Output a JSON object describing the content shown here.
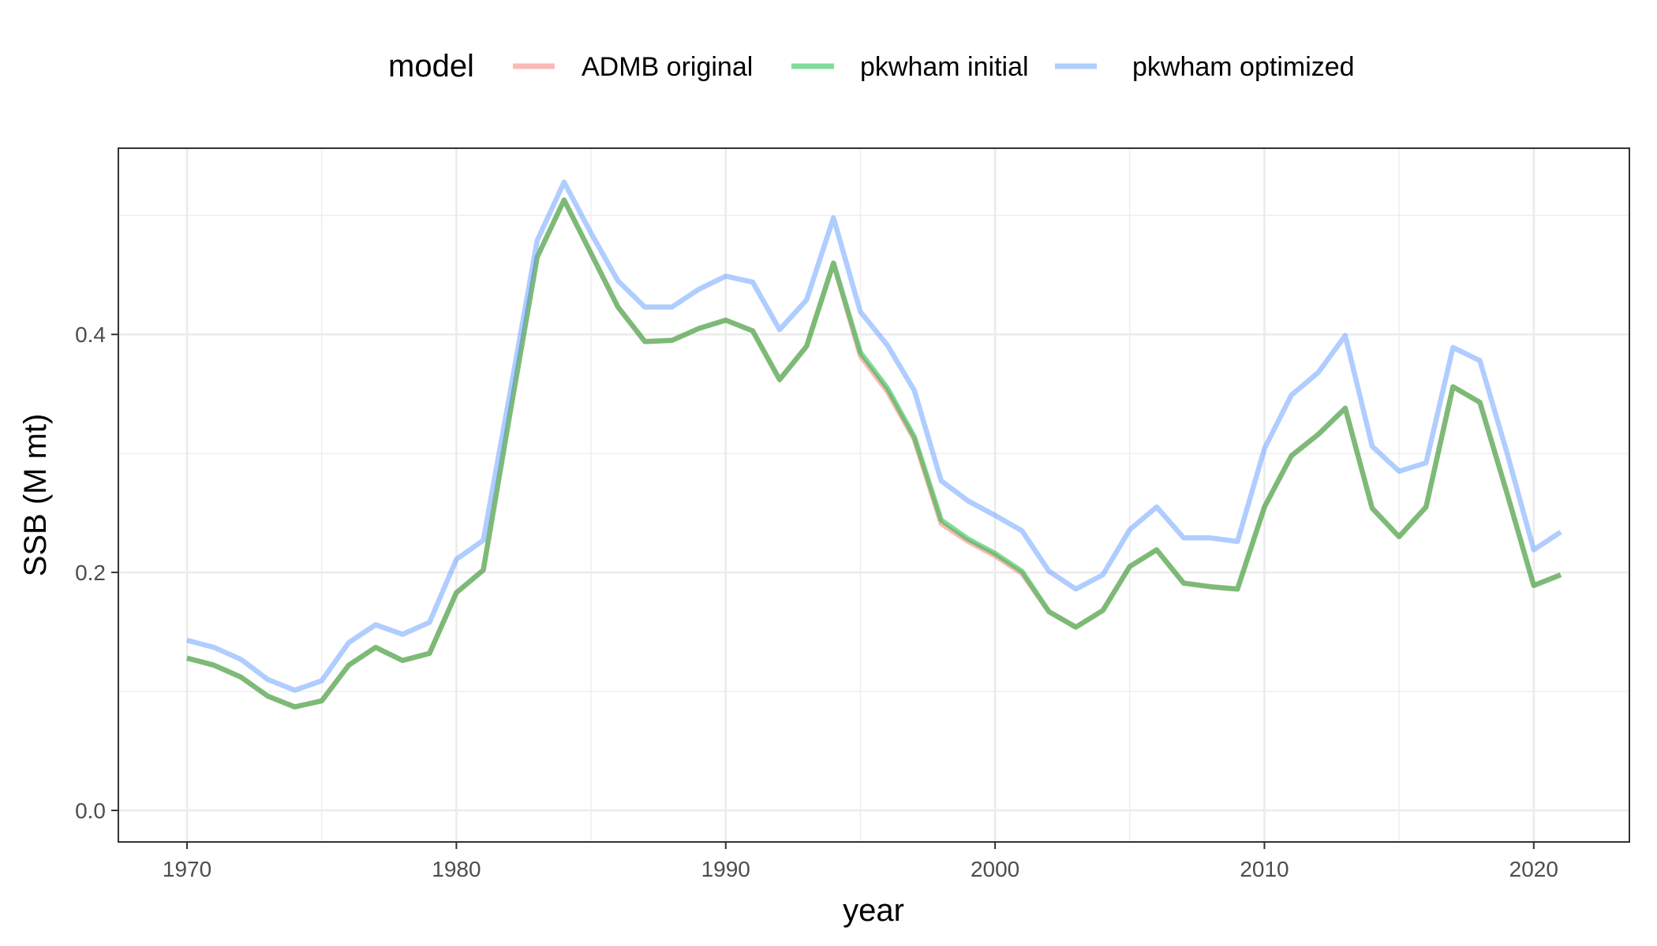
{
  "chart_data": {
    "type": "line",
    "title": "",
    "xlabel": "year",
    "ylabel": "SSB (M mt)",
    "xlim": [
      1967.45,
      2023.55
    ],
    "ylim": [
      -0.0265,
      0.5565
    ],
    "x_ticks": [
      1970,
      1980,
      1990,
      2000,
      2010,
      2020
    ],
    "y_ticks": [
      0.0,
      0.2,
      0.4
    ],
    "y_tick_labels": [
      "0.0",
      "0.2",
      "0.4"
    ],
    "grid": true,
    "legend": {
      "title": "model",
      "position": "top"
    },
    "x": [
      1970,
      1971,
      1972,
      1973,
      1974,
      1975,
      1976,
      1977,
      1978,
      1979,
      1980,
      1981,
      1982,
      1983,
      1984,
      1985,
      1986,
      1987,
      1988,
      1989,
      1990,
      1991,
      1992,
      1993,
      1994,
      1995,
      1996,
      1997,
      1998,
      1999,
      2000,
      2001,
      2002,
      2003,
      2004,
      2005,
      2006,
      2007,
      2008,
      2009,
      2010,
      2011,
      2012,
      2013,
      2014,
      2015,
      2016,
      2017,
      2018,
      2019,
      2020,
      2021
    ],
    "series": [
      {
        "name": "ADMB original",
        "color": "#f8766d",
        "values": [
          0.128,
          0.122,
          0.112,
          0.096,
          0.087,
          0.092,
          0.122,
          0.137,
          0.126,
          0.132,
          0.183,
          0.202,
          0.335,
          0.465,
          0.513,
          0.468,
          0.423,
          0.394,
          0.395,
          0.405,
          0.412,
          0.403,
          0.362,
          0.39,
          0.46,
          0.382,
          0.352,
          0.312,
          0.241,
          0.226,
          0.214,
          0.199,
          0.167,
          0.154,
          0.168,
          0.205,
          0.219,
          0.191,
          0.188,
          0.186,
          0.255,
          0.298,
          0.316,
          0.338,
          0.254,
          0.23,
          0.255,
          0.356,
          0.343,
          0.267,
          0.189,
          0.198
        ]
      },
      {
        "name": "pkwham initial",
        "color": "#00ba38",
        "values": [
          0.128,
          0.122,
          0.112,
          0.096,
          0.087,
          0.092,
          0.122,
          0.137,
          0.126,
          0.132,
          0.183,
          0.202,
          0.335,
          0.465,
          0.513,
          0.468,
          0.423,
          0.394,
          0.395,
          0.405,
          0.412,
          0.403,
          0.362,
          0.39,
          0.46,
          0.385,
          0.355,
          0.314,
          0.244,
          0.228,
          0.216,
          0.201,
          0.167,
          0.154,
          0.168,
          0.205,
          0.219,
          0.191,
          0.188,
          0.186,
          0.255,
          0.298,
          0.316,
          0.338,
          0.254,
          0.23,
          0.255,
          0.356,
          0.343,
          0.267,
          0.189,
          0.198
        ]
      },
      {
        "name": "pkwham optimized",
        "color": "#619cff",
        "values": [
          0.143,
          0.137,
          0.127,
          0.11,
          0.101,
          0.109,
          0.141,
          0.156,
          0.148,
          0.158,
          0.211,
          0.227,
          0.352,
          0.479,
          0.528,
          0.485,
          0.445,
          0.423,
          0.423,
          0.438,
          0.449,
          0.444,
          0.404,
          0.429,
          0.498,
          0.419,
          0.391,
          0.353,
          0.277,
          0.26,
          0.248,
          0.235,
          0.201,
          0.186,
          0.198,
          0.236,
          0.255,
          0.229,
          0.229,
          0.226,
          0.304,
          0.349,
          0.368,
          0.399,
          0.306,
          0.285,
          0.292,
          0.389,
          0.378,
          0.301,
          0.219,
          0.234
        ]
      }
    ]
  }
}
